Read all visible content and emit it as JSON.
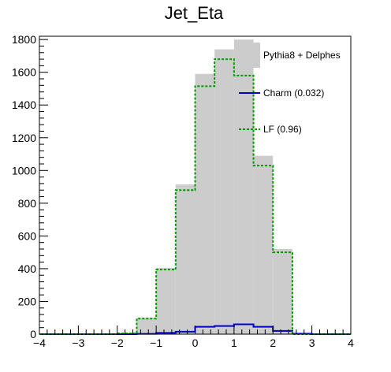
{
  "chart_data": {
    "type": "histogram",
    "title": "Jet_Eta",
    "xlabel": "",
    "ylabel": "",
    "xlim": [
      -4,
      4
    ],
    "ylim": [
      0,
      1820
    ],
    "bin_edges": [
      -4,
      -3.5,
      -3,
      -2.5,
      -2,
      -1.5,
      -1,
      -0.5,
      0,
      0.5,
      1,
      1.5,
      2,
      2.5,
      3,
      3.5,
      4
    ],
    "x_ticks": [
      -4,
      -3,
      -2,
      -1,
      0,
      1,
      2,
      3,
      4
    ],
    "x_tick_labels": [
      "−4",
      "−3",
      "−2",
      "−1",
      "0",
      "1",
      "2",
      "3",
      "4"
    ],
    "y_ticks": [
      0,
      200,
      400,
      600,
      800,
      1000,
      1200,
      1400,
      1600,
      1800
    ],
    "y_tick_labels": [
      "0",
      "200",
      "400",
      "600",
      "800",
      "1000",
      "1200",
      "1400",
      "1600",
      "1800"
    ],
    "series": [
      {
        "name": "Pythia8 + Delphes",
        "style": "filled",
        "color": "#cccccc",
        "values": [
          0,
          0,
          0,
          0,
          5,
          100,
          405,
          915,
          1590,
          1740,
          1800,
          1090,
          520,
          0,
          0,
          0
        ]
      },
      {
        "name": "Charm (0.032)",
        "style": "line",
        "color": "#0000cc",
        "values": [
          0,
          0,
          0,
          0,
          0,
          2,
          8,
          15,
          45,
          50,
          60,
          45,
          20,
          3,
          0,
          0
        ]
      },
      {
        "name": "LF (0.96)",
        "style": "dashed",
        "color": "#009900",
        "values": [
          0,
          0,
          0,
          0,
          5,
          95,
          395,
          880,
          1515,
          1680,
          1580,
          1030,
          500,
          0,
          0,
          0
        ]
      }
    ],
    "legend_position": "top-right",
    "grid": false
  }
}
